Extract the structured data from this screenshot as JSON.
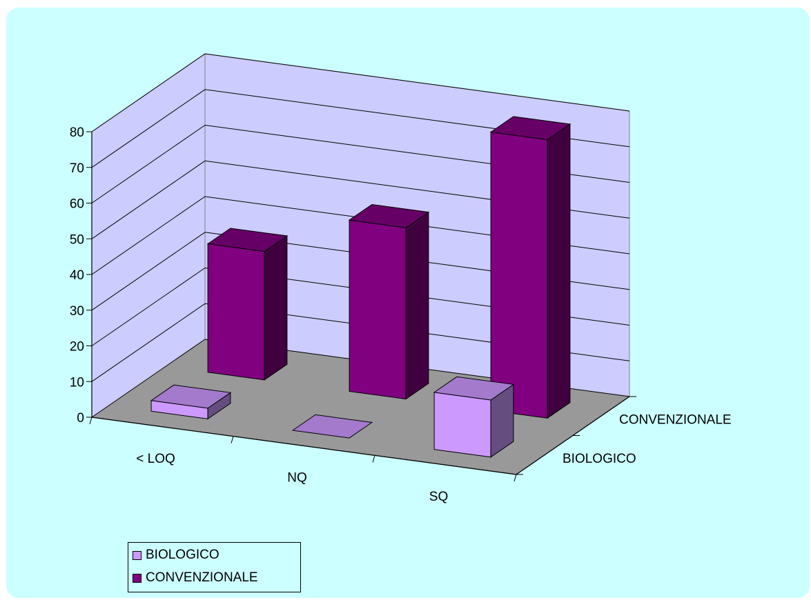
{
  "chart_data": {
    "type": "bar",
    "subtype": "3d-column",
    "categories": [
      "< LOQ",
      "NQ",
      "SQ"
    ],
    "series": [
      {
        "name": "BIOLOGICO",
        "values": [
          3,
          0,
          16
        ]
      },
      {
        "name": "CONVENZIONALE",
        "values": [
          36,
          48,
          78
        ]
      }
    ],
    "ylim": [
      0,
      80
    ],
    "yticks": [
      "0",
      "10",
      "20",
      "30",
      "40",
      "50",
      "60",
      "70",
      "80"
    ],
    "depth_labels": [
      "BIOLOGICO",
      "CONVENZIONALE"
    ],
    "grid": true,
    "legend_position": "bottom-left",
    "colors": {
      "background": "#ccffff",
      "walls": "#ccccff",
      "floor": "#999999",
      "BIOLOGICO": "#cc99ff",
      "CONVENZIONALE": "#800080"
    }
  }
}
